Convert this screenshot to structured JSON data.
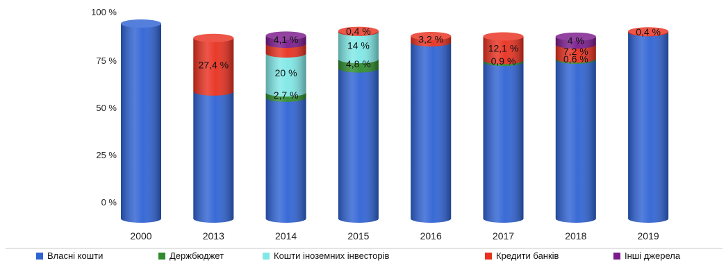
{
  "chart_data": {
    "type": "bar",
    "stacked": true,
    "style": "3d-cylinder",
    "title": "",
    "xlabel": "",
    "ylabel": "",
    "ylim": [
      0,
      100
    ],
    "yticks": [
      "0 %",
      "25 %",
      "50 %",
      "75 %",
      "100 %"
    ],
    "categories": [
      "2000",
      "2013",
      "2014",
      "2015",
      "2016",
      "2017",
      "2018",
      "2019"
    ],
    "series": [
      {
        "name": "Власні кошти",
        "color": "#2f63d4",
        "values": [
          100,
          65.2,
          62.0,
          77.0,
          90.4,
          80.4,
          81.5,
          95.6
        ]
      },
      {
        "name": "Держбюджет",
        "color": "#2e8b2e",
        "values": [
          0,
          0,
          2.7,
          4.8,
          0,
          0.9,
          0.6,
          0
        ]
      },
      {
        "name": "Кошти іноземних інвесторів",
        "color": "#7fe8e6",
        "values": [
          0,
          0,
          20,
          14,
          0,
          0,
          0,
          0
        ]
      },
      {
        "name": "Кредити банків",
        "color": "#e8301f",
        "values": [
          0,
          27.4,
          5.0,
          0.4,
          3.2,
          12.1,
          7.2,
          0.4
        ]
      },
      {
        "name": "Інші джерела",
        "color": "#7a1a8c",
        "values": [
          0,
          0,
          4.1,
          0,
          0,
          0,
          4,
          0
        ]
      }
    ],
    "data_labels": [
      {
        "category": "2013",
        "series": "Кредити банків",
        "text": "27,4 %"
      },
      {
        "category": "2014",
        "series": "Інші джерела",
        "text": "4,1 %"
      },
      {
        "category": "2014",
        "series": "Кошти іноземних інвесторів",
        "text": "20 %"
      },
      {
        "category": "2014",
        "series": "Держбюджет",
        "text": "2,7 %"
      },
      {
        "category": "2015",
        "series": "Кредити банків",
        "text": "0,4 %"
      },
      {
        "category": "2015",
        "series": "Кошти іноземних інвесторів",
        "text": "14 %"
      },
      {
        "category": "2015",
        "series": "Держбюджет",
        "text": "4,8 %"
      },
      {
        "category": "2016",
        "series": "Кредити банків",
        "text": "3,2 %"
      },
      {
        "category": "2017",
        "series": "Кредити банків",
        "text": "12,1 %"
      },
      {
        "category": "2017",
        "series": "Держбюджет",
        "text": "0,9 %"
      },
      {
        "category": "2018",
        "series": "Інші джерела",
        "text": "4 %"
      },
      {
        "category": "2018",
        "series": "Кредити банків",
        "text": "7,2 %"
      },
      {
        "category": "2018",
        "series": "Держбюджет",
        "text": "0,6 %"
      },
      {
        "category": "2019",
        "series": "Кредити банків",
        "text": "0,4 %"
      }
    ],
    "legend_position": "bottom",
    "grid": false
  }
}
